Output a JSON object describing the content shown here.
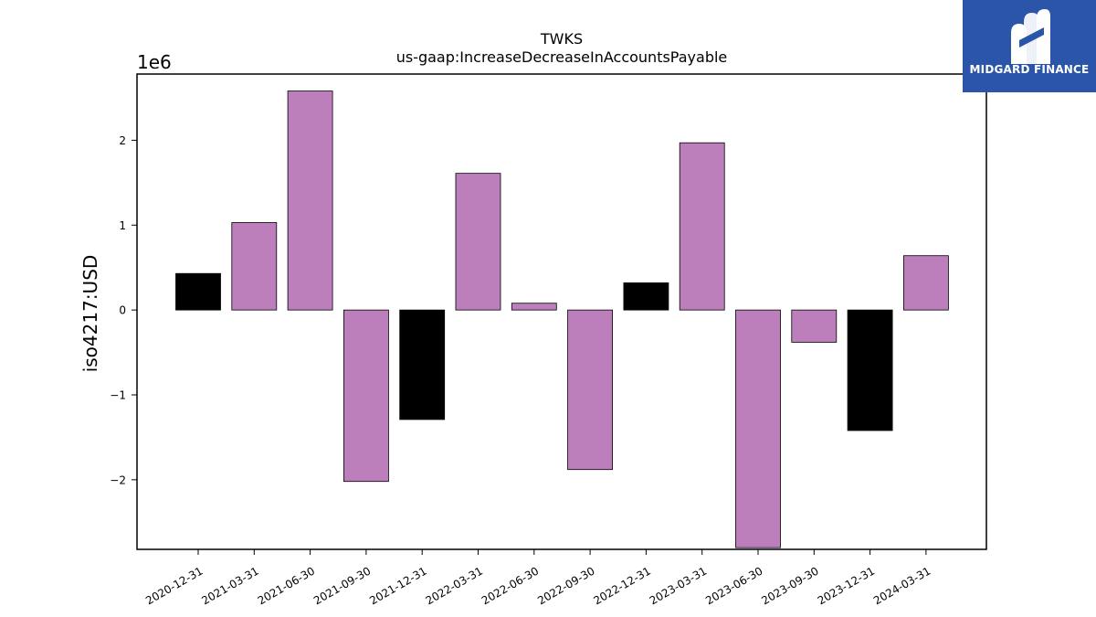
{
  "brand": {
    "name": "MIDGARD FINANCE",
    "logo_icon": "midgard-m-logo-icon",
    "background_color": "#2a55a8"
  },
  "chart_data": {
    "type": "bar",
    "title": "TWKS",
    "subtitle": "us-gaap:IncreaseDecreaseInAccountsPayable",
    "ylabel": "iso4217:USD",
    "xlabel": "",
    "y_scale_label": "1e6",
    "y_multiplier": 1000000,
    "ylim": [
      -2.82,
      2.78
    ],
    "yticks": [
      -2,
      -1,
      0,
      1,
      2
    ],
    "ytick_labels": [
      "−2",
      "−1",
      "0",
      "1",
      "2"
    ],
    "grid": false,
    "categories": [
      "2020-12-31",
      "2021-03-31",
      "2021-06-30",
      "2021-09-30",
      "2021-12-31",
      "2022-03-31",
      "2022-06-30",
      "2022-09-30",
      "2022-12-31",
      "2023-03-31",
      "2023-06-30",
      "2023-09-30",
      "2023-12-31",
      "2024-03-31"
    ],
    "values": [
      0.43,
      1.03,
      2.58,
      -2.02,
      -1.29,
      1.61,
      0.08,
      -1.88,
      0.32,
      1.97,
      -2.8,
      -0.38,
      -1.42,
      0.64
    ],
    "bar_colors": [
      "#000000",
      "#bc7fbc",
      "#bc7fbc",
      "#bc7fbc",
      "#000000",
      "#bc7fbc",
      "#bc7fbc",
      "#bc7fbc",
      "#000000",
      "#bc7fbc",
      "#bc7fbc",
      "#bc7fbc",
      "#000000",
      "#bc7fbc"
    ]
  }
}
